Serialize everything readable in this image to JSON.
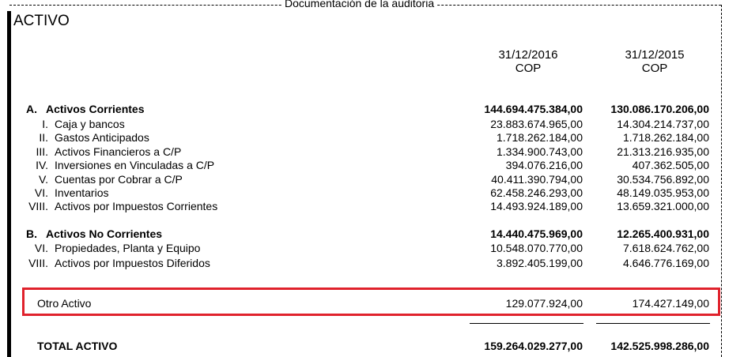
{
  "header": {
    "caption": "Documentación de la auditoria",
    "title": "ACTIVO"
  },
  "columns": [
    {
      "date": "31/12/2016",
      "currency": "COP"
    },
    {
      "date": "31/12/2015",
      "currency": "COP"
    }
  ],
  "current_assets": {
    "code": "A.",
    "label": "Activos Corrientes",
    "v2016": "144.694.475.384,00",
    "v2015": "130.086.170.206,00",
    "items": [
      {
        "num": "I.",
        "label": "Caja y bancos",
        "v2016": "23.883.674.965,00",
        "v2015": "14.304.214.737,00"
      },
      {
        "num": "II.",
        "label": "Gastos Anticipados",
        "v2016": "1.718.262.184,00",
        "v2015": "1.718.262.184,00"
      },
      {
        "num": "III.",
        "label": "Activos Financieros a C/P",
        "v2016": "1.334.900.743,00",
        "v2015": "21.313.216.935,00"
      },
      {
        "num": "IV.",
        "label": "Inversiones en Vinculadas a C/P",
        "v2016": "394.076.216,00",
        "v2015": "407.362.505,00"
      },
      {
        "num": "V.",
        "label": "Cuentas por Cobrar a C/P",
        "v2016": "40.411.390.794,00",
        "v2015": "30.534.756.892,00"
      },
      {
        "num": "VI.",
        "label": "Inventarios",
        "v2016": "62.458.246.293,00",
        "v2015": "48.149.035.953,00"
      },
      {
        "num": "VIII.",
        "label": "Activos por Impuestos Corrientes",
        "v2016": "14.493.924.189,00",
        "v2015": "13.659.321.000,00"
      }
    ]
  },
  "noncurrent_assets": {
    "code": "B.",
    "label": "Activos No Corrientes",
    "v2016": "14.440.475.969,00",
    "v2015": "12.265.400.931,00",
    "items": [
      {
        "num": "VI.",
        "label": "Propiedades, Planta y Equipo",
        "v2016": "10.548.070.770,00",
        "v2015": "7.618.624.762,00"
      },
      {
        "num": "VIII.",
        "label": "Activos por Impuestos Diferidos",
        "v2016": "3.892.405.199,00",
        "v2015": "4.646.776.169,00"
      }
    ]
  },
  "other_asset": {
    "label": "Otro Activo",
    "v2016": "129.077.924,00",
    "v2015": "174.427.149,00"
  },
  "total": {
    "label": "TOTAL ACTIVO",
    "v2016": "159.264.029.277,00",
    "v2015": "142.525.998.286,00"
  },
  "colors": {
    "highlight_border": "#e0222c"
  }
}
